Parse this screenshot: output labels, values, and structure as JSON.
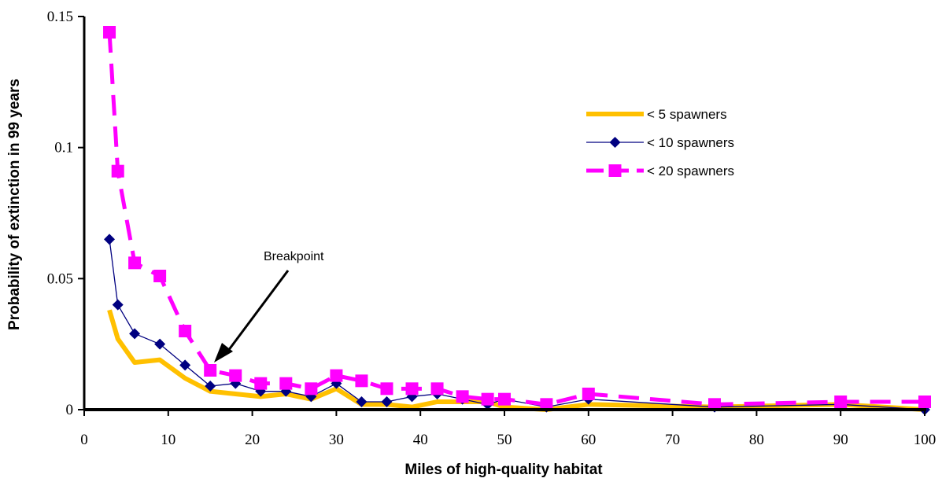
{
  "chart_data": {
    "type": "line",
    "title": "",
    "xlabel": "Miles of high-quality habitat",
    "ylabel": "Probability of extinction in 99 years",
    "xlim": [
      0,
      100
    ],
    "ylim": [
      0,
      0.15
    ],
    "xticks": [
      0,
      10,
      20,
      30,
      40,
      50,
      60,
      70,
      80,
      90,
      100
    ],
    "yticks": [
      0,
      0.05,
      0.1,
      0.15
    ],
    "xtick_labels": [
      "0",
      "10",
      "20",
      "30",
      "40",
      "50",
      "60",
      "70",
      "80",
      "90",
      "100"
    ],
    "ytick_labels": [
      "0",
      "0.05",
      "0.1",
      "0.15"
    ],
    "grid": false,
    "legend_position": "top-right",
    "series": [
      {
        "name": "< 5 spawners",
        "color": "#FFC000",
        "style": "thick-line",
        "x": [
          3,
          4,
          6,
          9,
          12,
          15,
          18,
          21,
          24,
          27,
          30,
          33,
          36,
          39,
          42,
          45,
          48,
          50,
          55,
          60,
          75,
          90,
          100
        ],
        "y": [
          0.038,
          0.027,
          0.018,
          0.019,
          0.012,
          0.007,
          0.006,
          0.005,
          0.006,
          0.004,
          0.008,
          0.002,
          0.002,
          0.001,
          0.003,
          0.003,
          0.003,
          0.001,
          0.0,
          0.002,
          0.001,
          0.002,
          0.0
        ]
      },
      {
        "name": "< 10 spawners",
        "color": "#000080",
        "style": "thin-line-diamond",
        "x": [
          3,
          4,
          6,
          9,
          12,
          15,
          18,
          21,
          24,
          27,
          30,
          33,
          36,
          39,
          42,
          45,
          48,
          50,
          55,
          60,
          75,
          90,
          100
        ],
        "y": [
          0.065,
          0.04,
          0.029,
          0.025,
          0.017,
          0.009,
          0.01,
          0.007,
          0.007,
          0.005,
          0.01,
          0.003,
          0.003,
          0.005,
          0.006,
          0.004,
          0.002,
          0.004,
          0.001,
          0.004,
          0.001,
          0.002,
          0.0
        ]
      },
      {
        "name": "< 20 spawners",
        "color": "#FF00FF",
        "style": "dashed-line-square",
        "x": [
          3,
          4,
          6,
          9,
          12,
          15,
          18,
          21,
          24,
          27,
          30,
          33,
          36,
          39,
          42,
          45,
          48,
          50,
          55,
          60,
          75,
          90,
          100
        ],
        "y": [
          0.144,
          0.091,
          0.056,
          0.051,
          0.03,
          0.015,
          0.013,
          0.01,
          0.01,
          0.008,
          0.013,
          0.011,
          0.008,
          0.008,
          0.008,
          0.005,
          0.004,
          0.004,
          0.002,
          0.006,
          0.002,
          0.003,
          0.003
        ]
      }
    ],
    "annotations": [
      {
        "text": "Breakpoint",
        "points_to": {
          "x": 15,
          "y": 0.015
        }
      }
    ]
  }
}
